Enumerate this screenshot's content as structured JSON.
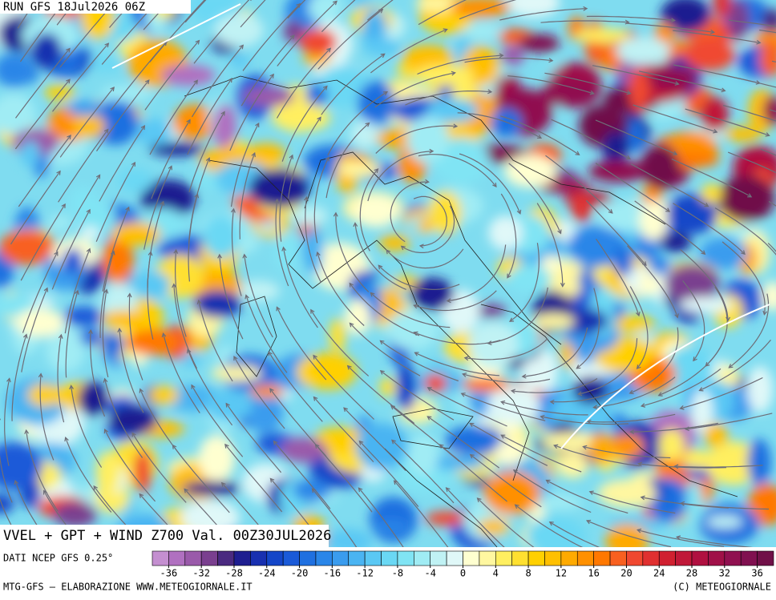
{
  "header": {
    "run": "RUN GFS 18Jul2026 06Z"
  },
  "map_title": "VVEL + GPT + WIND Z700 Val. 00Z30JUL2026",
  "source": "DATI NCEP GFS 0.25°",
  "footer": {
    "left": "MTG-GFS — ELABORAZIONE WWW.METEOGIORNALE.IT",
    "right": "(C) METEOGIORNALE"
  },
  "colorbar": {
    "range": [
      -38,
      38
    ],
    "ticks": [
      -36,
      -32,
      -28,
      -24,
      -20,
      -16,
      -12,
      -8,
      -4,
      0,
      4,
      8,
      12,
      16,
      20,
      24,
      28,
      32,
      36
    ],
    "colors": [
      "#c48fd0",
      "#b070c0",
      "#9a5aaa",
      "#7a3f8f",
      "#4a2a80",
      "#1e1e90",
      "#1830b0",
      "#1446c8",
      "#1a5ad8",
      "#1f70e0",
      "#2a86e8",
      "#3a9cee",
      "#4ab4f2",
      "#5ac8f4",
      "#6ad8f4",
      "#80e4f4",
      "#a0ecf4",
      "#c0f2f4",
      "#e0f8f8",
      "#ffffd0",
      "#fff7a0",
      "#ffef60",
      "#ffe030",
      "#ffd000",
      "#ffc000",
      "#ffaa00",
      "#ff9000",
      "#ff7800",
      "#f86020",
      "#f04830",
      "#e03030",
      "#d02030",
      "#c01838",
      "#b01040",
      "#a01048",
      "#901050",
      "#801050",
      "#701048"
    ]
  }
}
